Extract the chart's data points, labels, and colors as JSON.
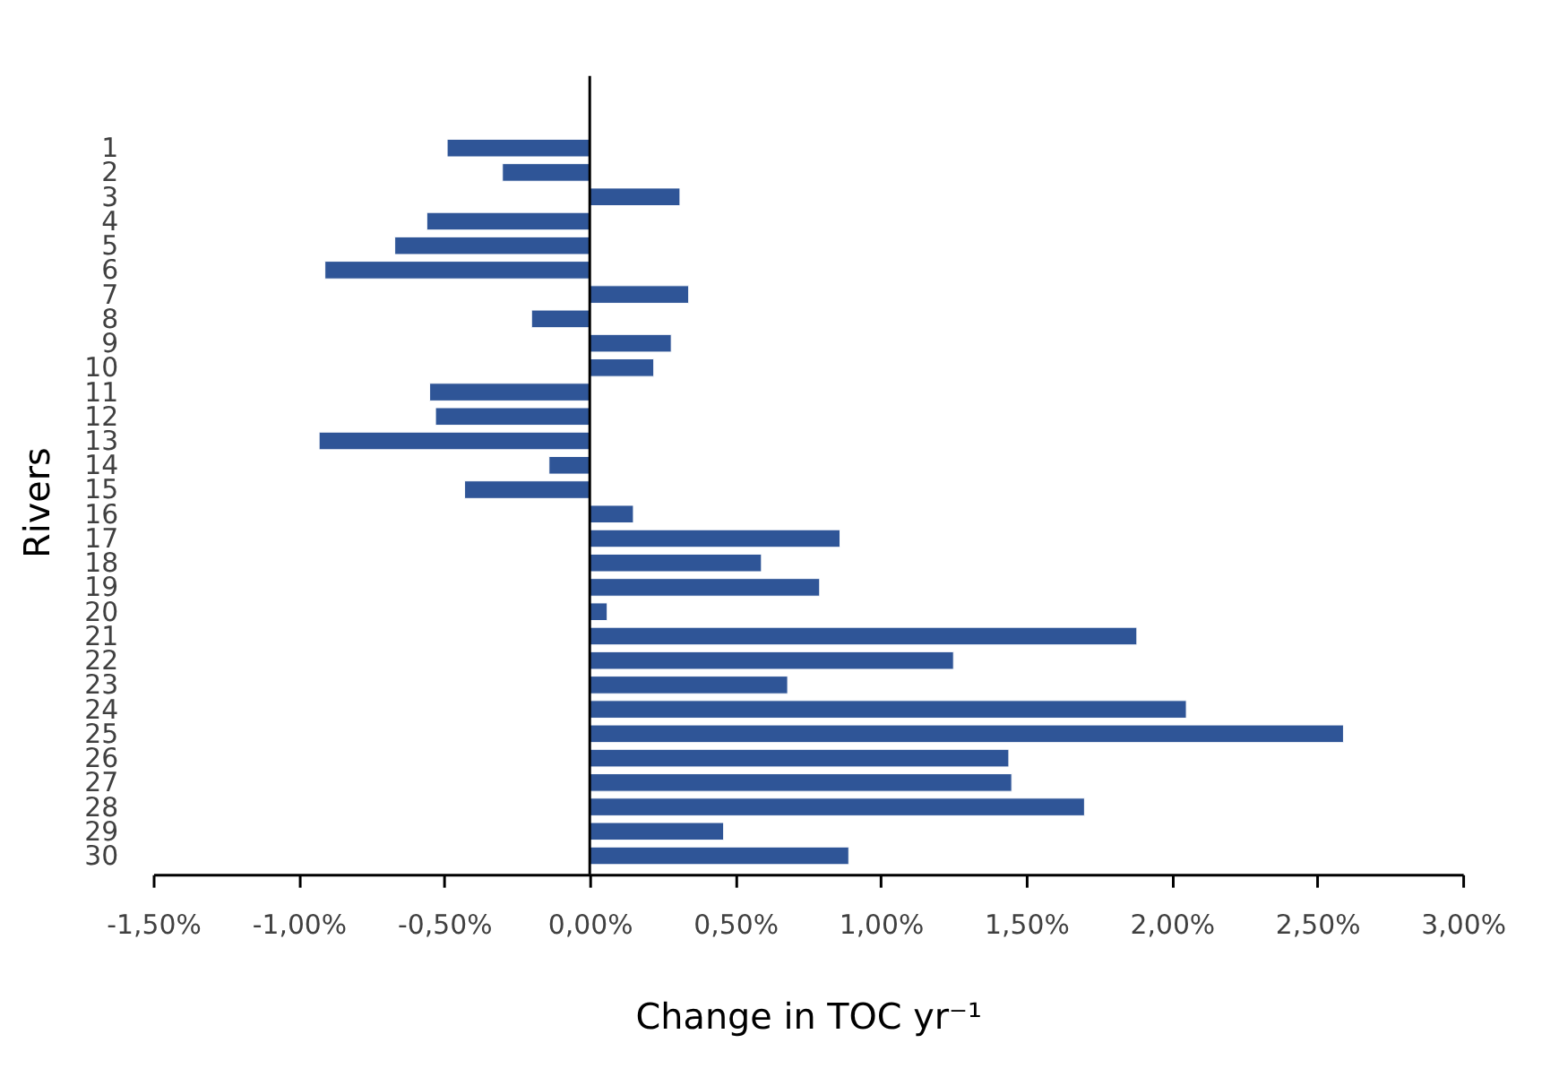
{
  "chart_data": {
    "type": "bar",
    "orientation": "horizontal",
    "xlabel": "Change in TOC yr⁻¹",
    "ylabel": "Rivers",
    "categories": [
      "1",
      "2",
      "3",
      "4",
      "5",
      "6",
      "7",
      "8",
      "9",
      "10",
      "11",
      "12",
      "13",
      "14",
      "15",
      "16",
      "17",
      "18",
      "19",
      "20",
      "21",
      "22",
      "23",
      "24",
      "25",
      "26",
      "27",
      "28",
      "29",
      "30"
    ],
    "series": [
      {
        "color": "#2f5597",
        "values": [
          -0.49,
          -0.3,
          0.31,
          -0.56,
          -0.67,
          -0.91,
          0.34,
          -0.2,
          0.28,
          0.22,
          -0.55,
          -0.53,
          -0.93,
          -0.14,
          -0.43,
          0.15,
          0.86,
          0.59,
          0.79,
          0.06,
          1.88,
          1.25,
          0.68,
          2.05,
          2.59,
          1.44,
          1.45,
          1.7,
          0.46,
          0.89
        ]
      }
    ],
    "xlim": [
      -1.5,
      3.0
    ],
    "xticks": [
      {
        "value": -1.5,
        "label": "-1,50%"
      },
      {
        "value": -1.0,
        "label": "-1,00%"
      },
      {
        "value": -0.5,
        "label": "-0,50%"
      },
      {
        "value": 0.0,
        "label": "0,00%"
      },
      {
        "value": 0.5,
        "label": "0,50%"
      },
      {
        "value": 1.0,
        "label": "1,00%"
      },
      {
        "value": 1.5,
        "label": "1,50%"
      },
      {
        "value": 2.0,
        "label": "2,00%"
      },
      {
        "value": 2.5,
        "label": "2,50%"
      },
      {
        "value": 3.0,
        "label": "3,00%"
      }
    ],
    "legend": false
  }
}
